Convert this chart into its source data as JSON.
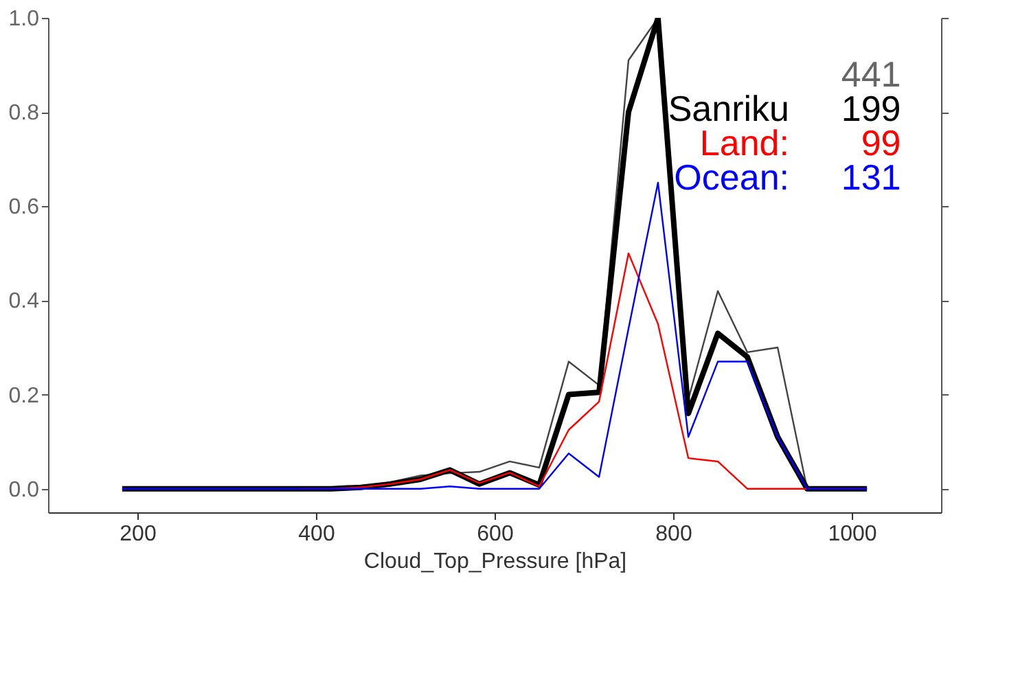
{
  "chart_data": {
    "type": "line",
    "xlabel": "Cloud_Top_Pressure [hPa]",
    "xlim": [
      100,
      1100
    ],
    "xticks": [
      200,
      400,
      600,
      800,
      {
        "value": 1000,
        "label": "1000"
      }
    ],
    "ylim": [
      -0.05,
      1.0
    ],
    "yticks": [
      {
        "value": 0,
        "label": "0.0"
      },
      0.2,
      0.4,
      0.6,
      0.8,
      {
        "value": 1,
        "label": "1.0"
      }
    ],
    "x": [
      183,
      217,
      250,
      283,
      317,
      350,
      383,
      417,
      450,
      483,
      517,
      550,
      583,
      617,
      650,
      683,
      717,
      750,
      783,
      817,
      850,
      883,
      917,
      950,
      983,
      1017
    ],
    "series": [
      {
        "color": "#444444",
        "values": [
          0,
          0,
          0,
          0,
          0,
          0,
          0,
          0,
          0.003,
          0.014,
          0.028,
          0.033,
          0.036,
          0.058,
          0.045,
          0.27,
          0.22,
          0.91,
          1.0,
          0.19,
          0.42,
          0.29,
          0.3,
          0,
          0,
          0
        ]
      },
      {
        "name": "Sanriku",
        "color": "#000000",
        "values": [
          0,
          0,
          0,
          0,
          0,
          0,
          0,
          0,
          0.003,
          0.01,
          0.02,
          0.04,
          0.01,
          0.034,
          0.008,
          0.2,
          0.205,
          0.8,
          1.0,
          0.16,
          0.33,
          0.28,
          0.11,
          0,
          0,
          0
        ]
      },
      {
        "name": "Land:",
        "color": "#ff0000",
        "values": [
          null,
          null,
          null,
          null,
          null,
          null,
          0,
          0,
          0.003,
          0.01,
          0.02,
          0.04,
          0.012,
          0.034,
          0.005,
          0.125,
          0.185,
          0.5,
          0.35,
          0.065,
          0.058,
          0,
          0,
          0,
          0,
          0
        ]
      },
      {
        "name": "Ocean:",
        "color": "#0000ff",
        "values": [
          0,
          0,
          0,
          0,
          0,
          0,
          0,
          0,
          0,
          0,
          0,
          0.005,
          0,
          0,
          0,
          0.075,
          0.025,
          0.34,
          0.65,
          0.11,
          0.27,
          0.27,
          0.11,
          0,
          0,
          0
        ]
      }
    ],
    "annotations": [
      "441",
      "199",
      "99",
      "131"
    ],
    "legend": "top right",
    "grid": false
  }
}
